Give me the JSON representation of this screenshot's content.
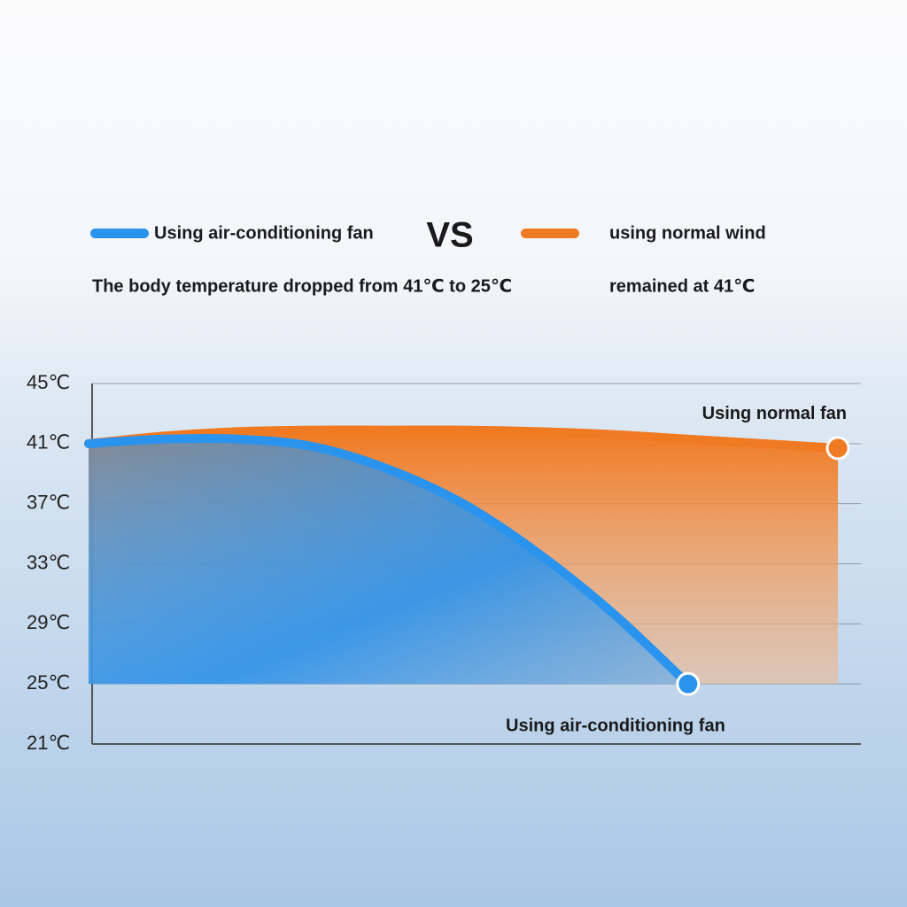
{
  "chart_data": {
    "type": "area",
    "vs_label": "VS",
    "categories": [
      null,
      null,
      null,
      null,
      null,
      null,
      null,
      null,
      null,
      null,
      null
    ],
    "series": [
      {
        "name": "Using air-conditioning fan",
        "note": "The body temperature dropped from 41℃ to 25℃",
        "color": "#2a93ee",
        "end_label": "Using air-conditioning fan",
        "values": [
          41,
          41.3,
          41.3,
          40.8,
          39.3,
          37,
          33.7,
          29.7,
          25,
          null,
          null
        ]
      },
      {
        "name": "using normal wind",
        "note": "remained at 41℃",
        "color": "#f07a22",
        "end_label": "Using normal fan",
        "values": [
          41,
          41.5,
          41.8,
          41.9,
          41.9,
          41.9,
          41.8,
          41.6,
          41.3,
          41.0,
          40.7
        ]
      }
    ],
    "ylim": [
      21,
      45
    ],
    "yticks": [
      {
        "value": 45,
        "label": "45℃"
      },
      {
        "value": 41,
        "label": "41℃"
      },
      {
        "value": 37,
        "label": "37℃"
      },
      {
        "value": 33,
        "label": "33℃"
      },
      {
        "value": 29,
        "label": "29℃"
      },
      {
        "value": 25,
        "label": "25℃"
      },
      {
        "value": 21,
        "label": "21℃"
      }
    ],
    "grid": true
  }
}
